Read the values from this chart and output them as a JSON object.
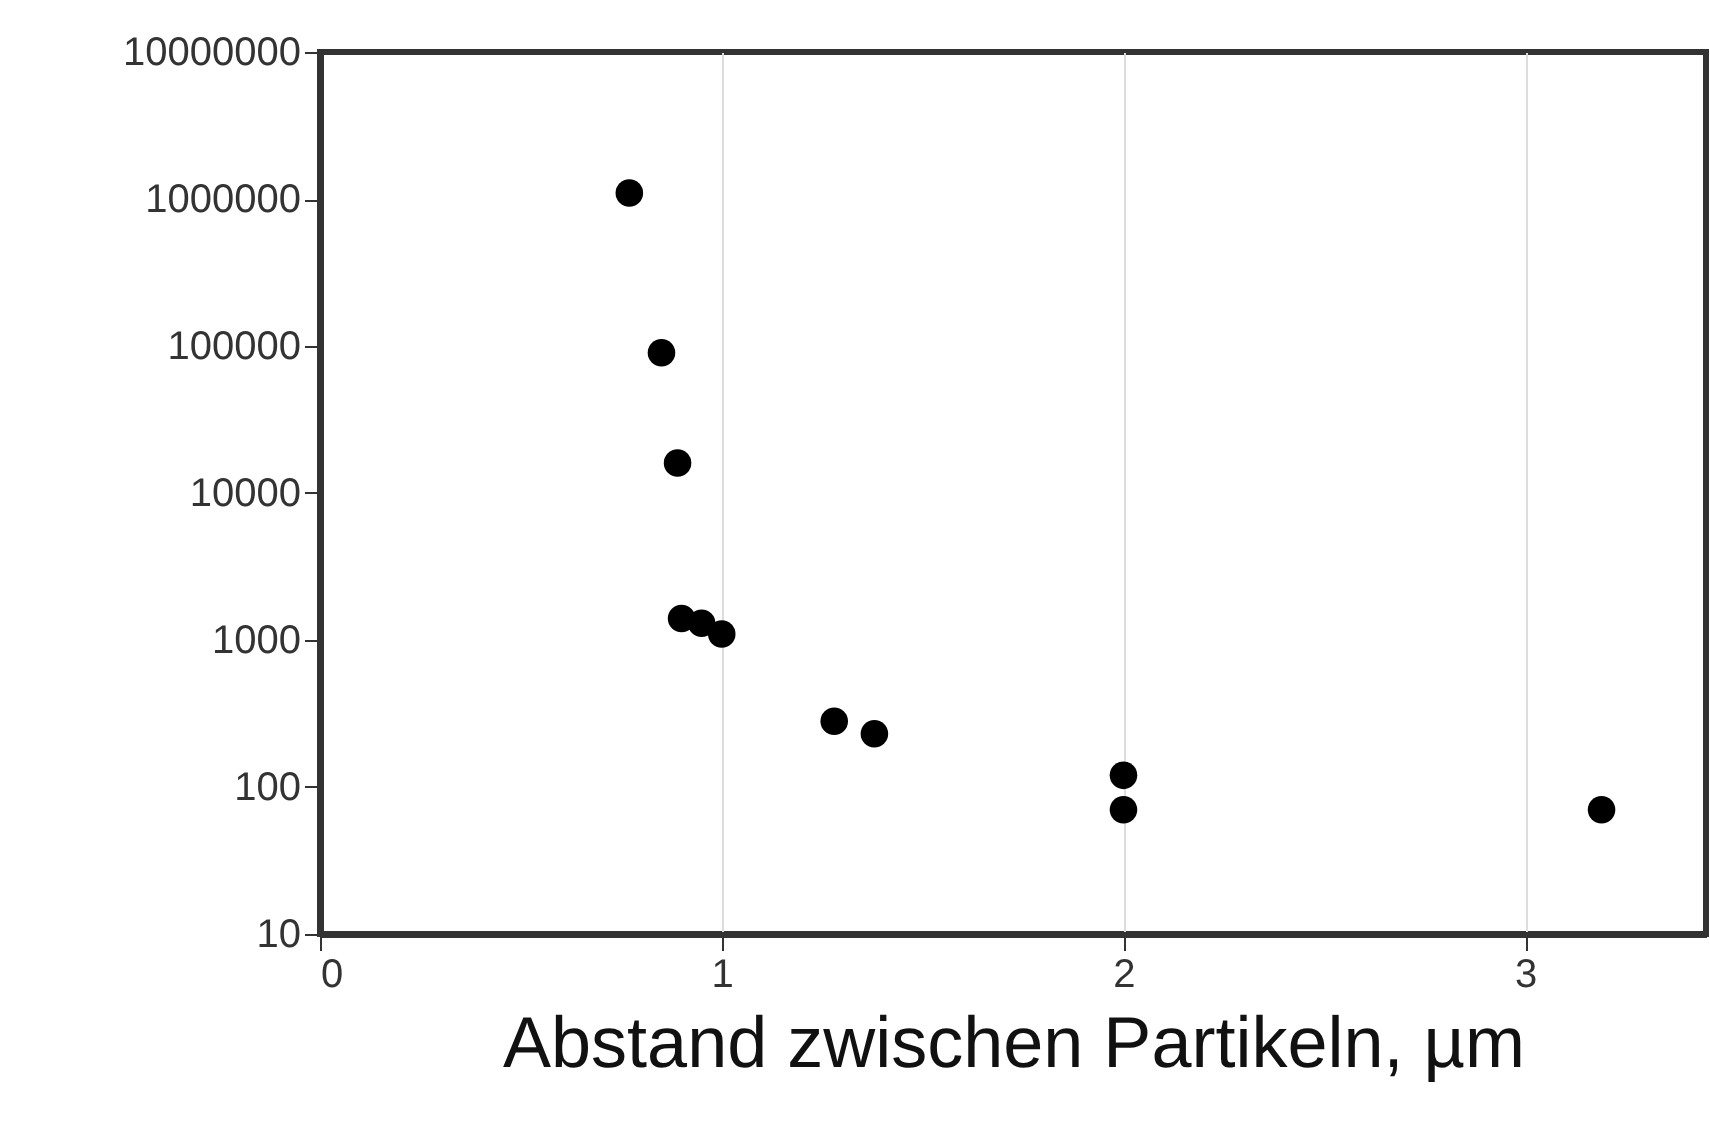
{
  "chart_data": {
    "type": "scatter",
    "xlabel": "Abstand zwischen Partikeln,   µm",
    "x": [
      0.77,
      0.85,
      0.89,
      0.9,
      0.95,
      1.0,
      1.28,
      1.38,
      2.0,
      2.0,
      3.19
    ],
    "series": [
      {
        "color": "#000000",
        "values": [
          1100000,
          90000,
          16000,
          1400,
          1300,
          1100,
          280,
          230,
          120,
          70,
          70
        ]
      }
    ],
    "xlim": [
      0,
      3.45
    ],
    "xticks": [
      0,
      1,
      2,
      3
    ],
    "ylim": [
      10,
      10000000
    ],
    "yticks": [
      10,
      100,
      1000,
      10000,
      100000,
      1000000,
      10000000
    ],
    "log": "y",
    "grid": "x",
    "marker": "circle",
    "legend": false
  }
}
